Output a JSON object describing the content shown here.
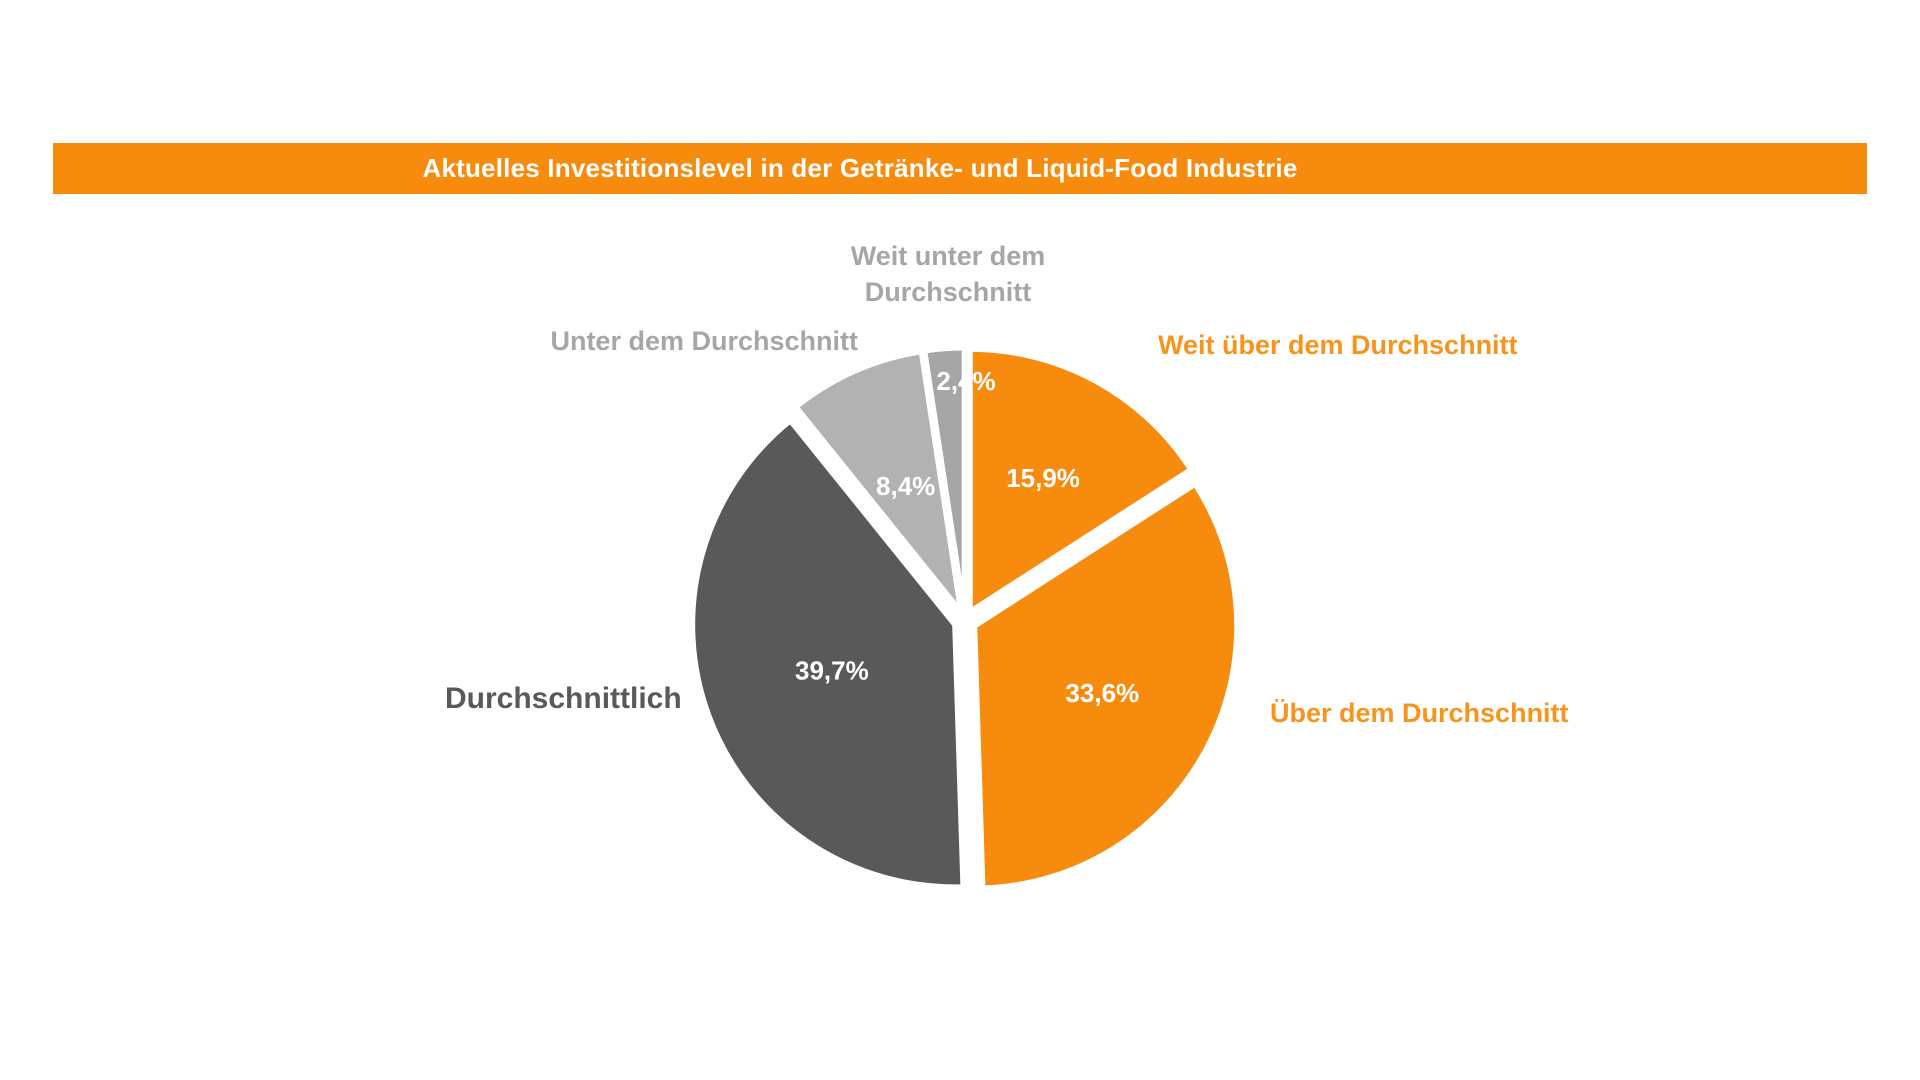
{
  "banner": {
    "title": "Aktuelles Investitionslevel in der Getränke- und Liquid-Food Industrie",
    "bg": "#F68B0E",
    "text_color": "#FFFFFF"
  },
  "chart_data": {
    "type": "pie",
    "title": "Aktuelles Investitionslevel in der Getränke- und Liquid-Food Industrie",
    "unit": "%",
    "start_angle_deg": 0,
    "direction": "clockwise",
    "legend_position": "outside-labels",
    "exploded": true,
    "slices": [
      {
        "category": "Weit über dem Durchschnitt",
        "value_pct": 15.9,
        "display": "15,9%",
        "color": "#F68B0E",
        "label_color": "#F7941E"
      },
      {
        "category": "Über dem Durchschnitt",
        "value_pct": 33.6,
        "display": "33,6%",
        "color": "#F68B0E",
        "label_color": "#F7941E"
      },
      {
        "category": "Durchschnittlich",
        "value_pct": 39.7,
        "display": "39,7%",
        "color": "#595959",
        "label_color": "#595959"
      },
      {
        "category": "Unter dem Durchschnitt",
        "value_pct": 8.4,
        "display": "8,4%",
        "color": "#B2B2B2",
        "label_color": "#A6A6A6"
      },
      {
        "category": "Weit unter dem Durchschnitt",
        "value_pct": 2.4,
        "display": "2,4%",
        "color": "#A6A6A6",
        "label_color": "#A6A6A6"
      }
    ]
  }
}
